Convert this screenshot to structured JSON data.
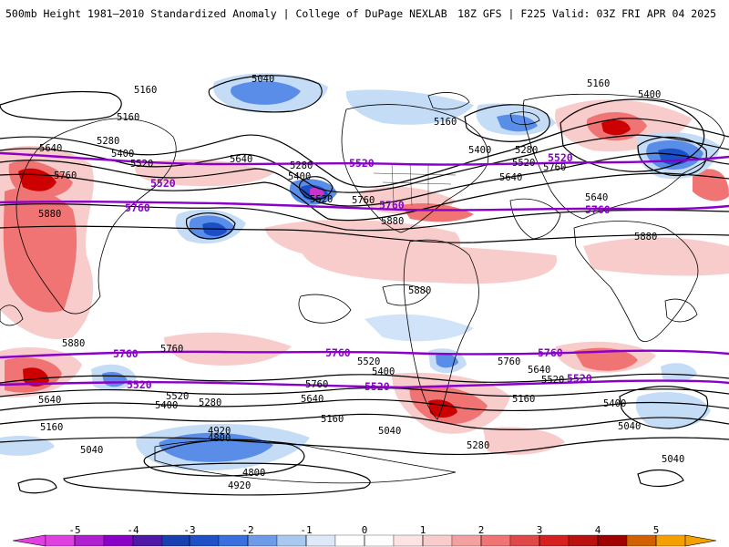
{
  "header": {
    "title": "500mb Height 1981–2010 Standardized Anomaly | College of DuPage NEXLAB",
    "run_info": "18Z GFS | F225 Valid: 03Z FRI APR 04 2025"
  },
  "colors": {
    "anom_pos_1": "#f9cccc",
    "anom_pos_2": "#f07474",
    "anom_pos_3": "#cc0000",
    "anom_neg_1": "#c5dcf7",
    "anom_neg_2": "#5a8de8",
    "anom_neg_3": "#1a4fc8",
    "anom_neg_4": "#cc33cc",
    "reference_contour": "#8a00c8",
    "contour": "#000000",
    "coastline": "#000000"
  },
  "contours": {
    "reference_labels": [
      "5760",
      "5520"
    ],
    "labels": [
      "5040",
      "5160",
      "5280",
      "5400",
      "5520",
      "5640",
      "5760",
      "5880",
      "4920",
      "4800"
    ]
  },
  "colorbar": {
    "ticks": [
      "-5",
      "-4",
      "-3",
      "-2",
      "-1",
      "0",
      "1",
      "2",
      "3",
      "4",
      "5"
    ],
    "colors": [
      "#e040e0",
      "#8a00c8",
      "#1a3fb0",
      "#3a6fe0",
      "#a8c8f0",
      "#ffffff",
      "#f9cccc",
      "#f07474",
      "#d62020",
      "#a00000",
      "#f4a000"
    ]
  }
}
